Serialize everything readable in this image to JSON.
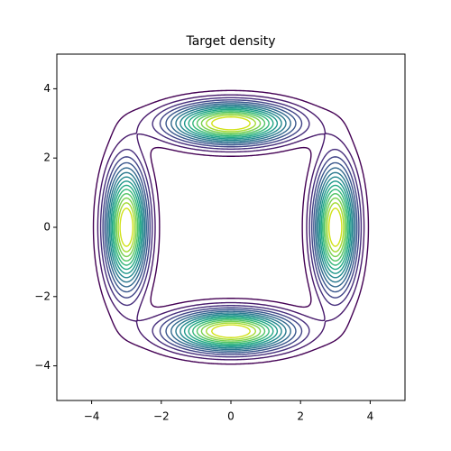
{
  "chart_data": {
    "type": "contour",
    "title": "Target density",
    "components": [
      {
        "center": [
          0,
          3
        ],
        "spread": [
          1.2,
          0.4
        ]
      },
      {
        "center": [
          0,
          -3
        ],
        "spread": [
          1.2,
          0.4
        ]
      },
      {
        "center": [
          3,
          0
        ],
        "spread": [
          0.4,
          1.2
        ]
      },
      {
        "center": [
          -3,
          0
        ],
        "spread": [
          0.4,
          1.2
        ]
      }
    ],
    "levels": [
      0.06,
      0.12,
      0.18,
      0.24,
      0.3,
      0.36,
      0.42,
      0.48,
      0.54,
      0.6,
      0.66,
      0.72,
      0.78,
      0.84,
      0.9
    ],
    "colors": [
      "#440154",
      "#481a6c",
      "#472f7d",
      "#414487",
      "#39568c",
      "#31688e",
      "#2a788e",
      "#23888e",
      "#1f988b",
      "#22a884",
      "#35b779",
      "#54c568",
      "#7ad151",
      "#a5db36",
      "#d2e21b"
    ],
    "xlim": [
      -5,
      5
    ],
    "ylim": [
      -5,
      5
    ],
    "xticks": [
      {
        "value": -4,
        "label": "−4"
      },
      {
        "value": -2,
        "label": "−2"
      },
      0,
      2,
      4
    ],
    "yticks": [
      {
        "value": -4,
        "label": "−4"
      },
      {
        "value": -2,
        "label": "−2"
      },
      0,
      2,
      4
    ]
  }
}
